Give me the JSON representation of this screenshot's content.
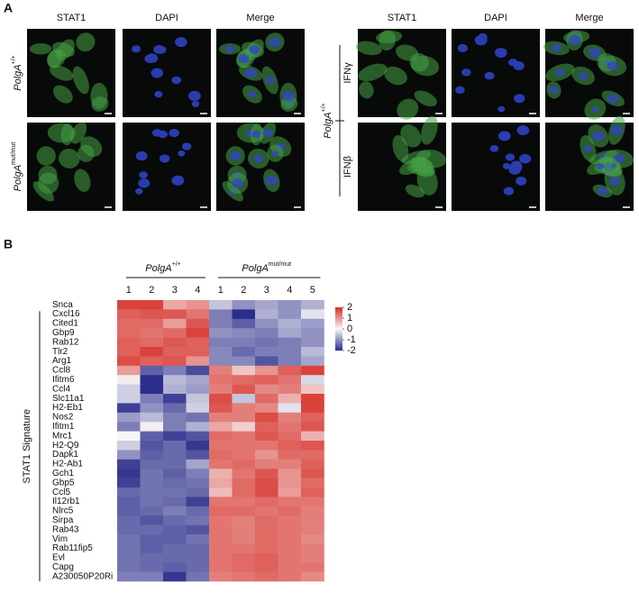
{
  "panel_a": {
    "label": "A",
    "left": {
      "columns": [
        "STAT1",
        "DAPI",
        "Merge"
      ],
      "rows": [
        {
          "base": "PolgA",
          "sup": "+/+"
        },
        {
          "base": "PolgA",
          "sup": "mut/mut"
        }
      ]
    },
    "right": {
      "columns": [
        "STAT1",
        "DAPI",
        "Merge"
      ],
      "group": {
        "base": "PolgA",
        "sup": "+/+"
      },
      "rows": [
        "IFNγ",
        "IFNβ"
      ]
    }
  },
  "panel_b": {
    "label": "B"
  },
  "chart_data": {
    "type": "heatmap",
    "groups": [
      {
        "name": {
          "base": "PolgA",
          "sup": "+/+"
        },
        "columns": [
          "1",
          "2",
          "3",
          "4"
        ]
      },
      {
        "name": {
          "base": "PolgA",
          "sup": "mut/mut"
        },
        "columns": [
          "1",
          "2",
          "3",
          "4",
          "5"
        ]
      }
    ],
    "rows": [
      "Snca",
      "Cxcl16",
      "Cited1",
      "Gbp9",
      "Rab12",
      "Tlr2",
      "Arg1",
      "Ccl8",
      "Ifitm6",
      "Ccl4",
      "Slc11a1",
      "H2-Eb1",
      "Nos2",
      "Ifitm1",
      "Mrc1",
      "H2-Q9",
      "Dapk1",
      "H2-Ab1",
      "Gch1",
      "Gbp5",
      "Ccl5",
      "Il12rb1",
      "Nlrc5",
      "Sirpa",
      "Rab43",
      "Vim",
      "Rab11fip5",
      "Evl",
      "Capg",
      "A230050P20Ri"
    ],
    "row_group_label": "STAT1 Signature",
    "values": [
      [
        1.8,
        1.8,
        0.8,
        1.0,
        -0.5,
        -1.0,
        -0.8,
        -1.0,
        -0.7
      ],
      [
        1.5,
        1.6,
        1.6,
        1.3,
        -1.2,
        -2.0,
        -0.7,
        -1.0,
        -0.2
      ],
      [
        1.4,
        1.4,
        0.9,
        1.6,
        -1.2,
        -1.5,
        -1.0,
        -0.7,
        -0.9
      ],
      [
        1.4,
        1.3,
        1.4,
        1.8,
        -1.0,
        -1.1,
        -1.2,
        -0.8,
        -1.0
      ],
      [
        1.5,
        1.4,
        1.6,
        1.5,
        -1.2,
        -1.2,
        -1.3,
        -1.2,
        -1.0
      ],
      [
        1.5,
        1.8,
        1.5,
        1.5,
        -1.1,
        -1.4,
        -1.2,
        -1.2,
        -0.6
      ],
      [
        1.7,
        1.5,
        1.6,
        1.0,
        -1.1,
        -1.1,
        -1.6,
        -1.2,
        -0.8
      ],
      [
        0.9,
        -1.5,
        -1.2,
        -1.7,
        1.2,
        0.5,
        1.0,
        1.5,
        1.8
      ],
      [
        0.1,
        -2.0,
        -0.6,
        -0.8,
        1.3,
        1.4,
        1.5,
        1.3,
        -0.3
      ],
      [
        -0.4,
        -2.0,
        -0.7,
        -0.9,
        1.2,
        1.6,
        1.1,
        1.2,
        0.5
      ],
      [
        -0.4,
        -1.2,
        -1.8,
        -0.5,
        1.7,
        -0.5,
        1.4,
        0.7,
        1.8
      ],
      [
        -1.8,
        -1.0,
        -1.4,
        -0.4,
        1.6,
        1.2,
        1.1,
        -0.2,
        1.8
      ],
      [
        -0.9,
        -0.6,
        -1.2,
        -1.3,
        1.2,
        1.2,
        1.7,
        1.2,
        1.5
      ],
      [
        -1.2,
        0.1,
        -1.2,
        -0.7,
        0.8,
        0.4,
        1.5,
        1.3,
        1.6
      ],
      [
        0.0,
        -1.5,
        -1.8,
        -1.6,
        1.4,
        1.3,
        1.6,
        1.4,
        0.7
      ],
      [
        -0.4,
        -1.6,
        -1.4,
        -1.9,
        1.3,
        1.3,
        1.3,
        1.5,
        1.6
      ],
      [
        -1.0,
        -1.5,
        -1.4,
        -1.6,
        1.4,
        1.3,
        1.0,
        1.4,
        1.4
      ],
      [
        -1.8,
        -1.4,
        -1.4,
        -0.8,
        1.3,
        1.4,
        1.2,
        1.2,
        1.5
      ],
      [
        -1.9,
        -1.3,
        -1.5,
        -1.2,
        0.7,
        1.3,
        1.6,
        1.0,
        1.6
      ],
      [
        -1.8,
        -1.3,
        -1.4,
        -1.3,
        0.8,
        1.4,
        1.7,
        1.0,
        1.4
      ],
      [
        -1.4,
        -1.3,
        -1.3,
        -1.4,
        0.6,
        1.4,
        1.7,
        0.9,
        1.5
      ],
      [
        -1.5,
        -1.3,
        -1.4,
        -1.8,
        1.3,
        1.3,
        1.4,
        1.3,
        1.3
      ],
      [
        -1.5,
        -1.4,
        -1.2,
        -1.4,
        1.4,
        1.4,
        1.3,
        1.4,
        1.2
      ],
      [
        -1.4,
        -1.6,
        -1.4,
        -1.3,
        1.3,
        1.2,
        1.4,
        1.3,
        1.2
      ],
      [
        -1.4,
        -1.4,
        -1.5,
        -1.6,
        1.3,
        1.2,
        1.4,
        1.3,
        1.2
      ],
      [
        -1.3,
        -1.5,
        -1.5,
        -1.3,
        1.3,
        1.2,
        1.4,
        1.3,
        1.1
      ],
      [
        -1.3,
        -1.5,
        -1.4,
        -1.4,
        1.3,
        1.3,
        1.4,
        1.3,
        1.2
      ],
      [
        -1.3,
        -1.4,
        -1.4,
        -1.4,
        1.3,
        1.4,
        1.5,
        1.3,
        1.2
      ],
      [
        -1.3,
        -1.4,
        -1.5,
        -1.4,
        1.3,
        1.4,
        1.5,
        1.3,
        1.3
      ],
      [
        -1.2,
        -1.2,
        -1.9,
        -1.3,
        1.2,
        1.3,
        1.4,
        1.3,
        1.1
      ]
    ],
    "clim": [
      -2,
      2
    ],
    "cticks": [
      2,
      1,
      0,
      -1,
      -2
    ],
    "colormap": [
      "#2b2d8c",
      "#f7f7f7",
      "#d62f27"
    ]
  }
}
